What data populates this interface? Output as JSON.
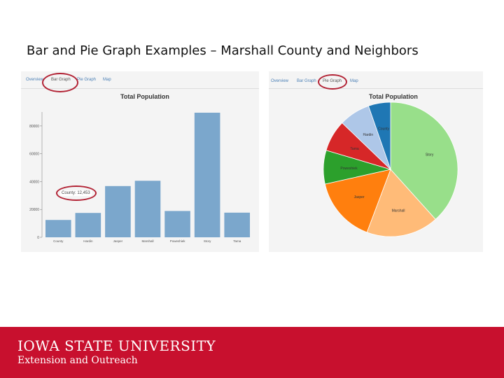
{
  "slide": {
    "title": "Bar and Pie Graph Examples – Marshall County and Neighbors"
  },
  "bar_panel": {
    "tabs": [
      "Overview",
      "Bar Graph",
      "Pie Graph",
      "Map"
    ],
    "active_tab": "Bar Graph",
    "tooltip": "County: 12,453"
  },
  "pie_panel": {
    "tabs": [
      "Overview",
      "Bar Graph",
      "Pie Graph",
      "Map"
    ],
    "active_tab": "Pie Graph"
  },
  "footer": {
    "university": "IOWA STATE UNIVERSITY",
    "unit": "Extension and Outreach"
  },
  "colors": {
    "bar": "#7ba7cc",
    "footer": "#c8102e",
    "highlight_ring": "#b22234"
  },
  "chart_data": [
    {
      "type": "bar",
      "title": "Total Population",
      "categories": [
        "County",
        "Hardin",
        "Jasper",
        "Marshall",
        "Poweshiek",
        "Story",
        "Tama"
      ],
      "values": [
        12453,
        17500,
        36800,
        40600,
        18900,
        89500,
        17700
      ],
      "yticks": [
        0,
        20000,
        40000,
        60000,
        80000
      ],
      "ytick_labels": [
        "0",
        "20000",
        "40000",
        "60000",
        "80000"
      ],
      "ylim": [
        0,
        90000
      ],
      "xlabel": "",
      "ylabel": ""
    },
    {
      "type": "pie",
      "title": "Total Population",
      "labels": [
        "Story",
        "Marshall",
        "Jasper",
        "Poweshiek",
        "Tama",
        "Hardin",
        "County"
      ],
      "values": [
        89500,
        40600,
        36800,
        18900,
        17700,
        17500,
        12453
      ],
      "colors": [
        "#98df8a",
        "#ffbb78",
        "#ff7f0e",
        "#2ca02c",
        "#d62728",
        "#aec7e8",
        "#1f77b4"
      ]
    }
  ]
}
